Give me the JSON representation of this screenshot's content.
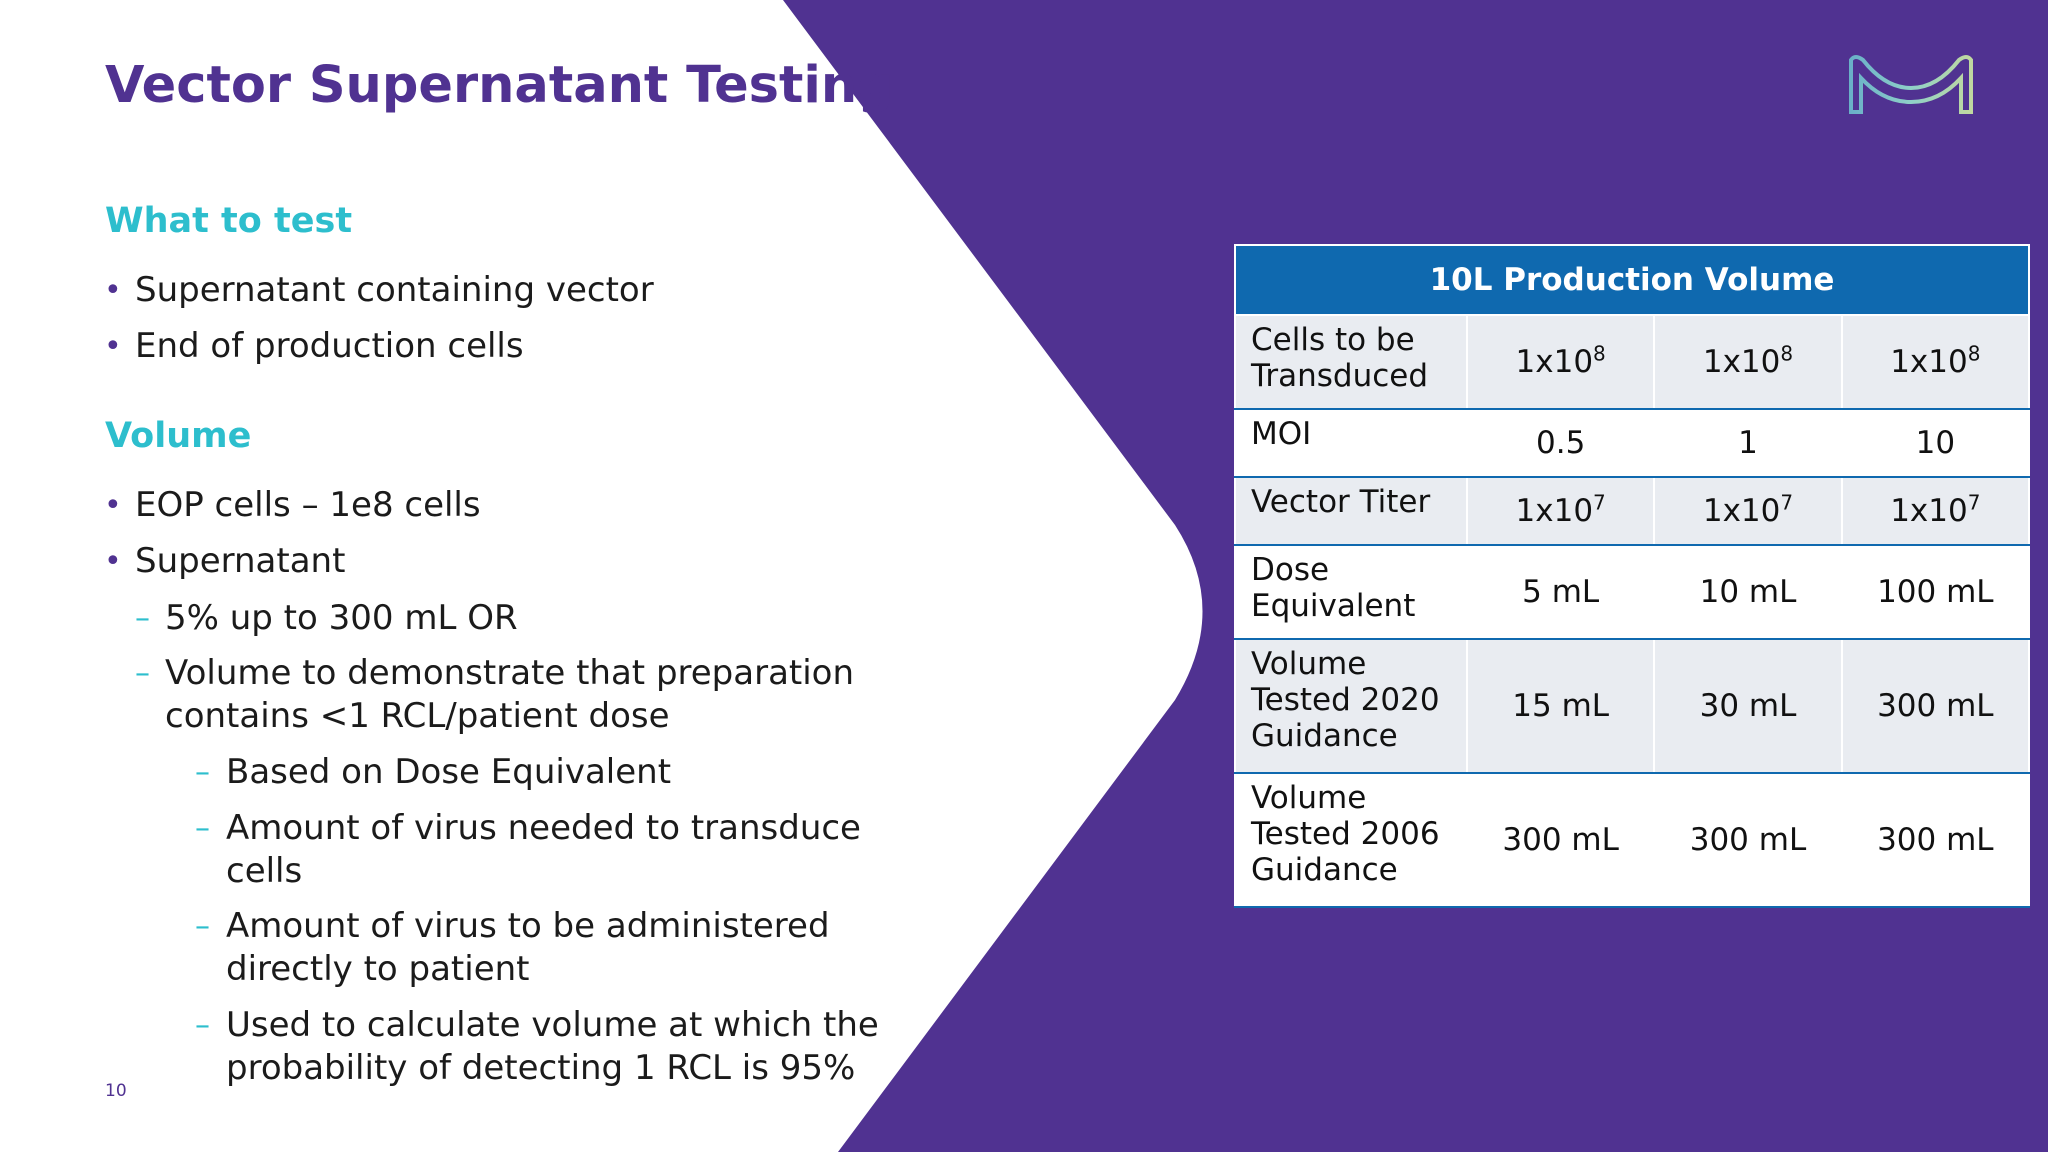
{
  "title": "Vector Supernatant Testing",
  "page_number": "10",
  "sections": [
    {
      "heading": "What to test"
    },
    {
      "heading": "Volume"
    }
  ],
  "what_to_test": [
    "Supernatant containing vector",
    "End of production cells"
  ],
  "volume": {
    "eop": "EOP cells – 1e8 cells",
    "supernatant": "Supernatant",
    "sub1": "5% up to  300 mL  OR",
    "sub2_l1": "Volume to demonstrate that preparation",
    "sub2_l2": "contains <1 RCL/patient dose",
    "sub3_1": "Based on Dose Equivalent",
    "sub3_2_l1": "Amount of virus needed to transduce",
    "sub3_2_l2": "cells",
    "sub3_3_l1": "Amount of virus to be administered",
    "sub3_3_l2": "directly to patient",
    "sub3_4_l1": "Used to calculate volume at which the",
    "sub3_4_l2": "probability of detecting 1 RCL is 95%"
  },
  "table": {
    "header": "10L Production Volume",
    "rows": [
      {
        "label": [
          "Cells to be",
          "Transduced"
        ],
        "values": [
          {
            "base": "1x10",
            "exp": "8"
          },
          {
            "base": "1x10",
            "exp": "8"
          },
          {
            "base": "1x10",
            "exp": "8"
          }
        ]
      },
      {
        "label": [
          "MOI"
        ],
        "values": [
          {
            "base": "0.5",
            "exp": ""
          },
          {
            "base": "1",
            "exp": ""
          },
          {
            "base": "10",
            "exp": ""
          }
        ]
      },
      {
        "label": [
          "Vector Titer"
        ],
        "values": [
          {
            "base": "1x10",
            "exp": "7"
          },
          {
            "base": "1x10",
            "exp": "7"
          },
          {
            "base": "1x10",
            "exp": "7"
          }
        ]
      },
      {
        "label": [
          "Dose",
          "Equivalent"
        ],
        "values": [
          {
            "base": "5 mL",
            "exp": ""
          },
          {
            "base": "10 mL",
            "exp": ""
          },
          {
            "base": "100 mL",
            "exp": ""
          }
        ]
      },
      {
        "label": [
          "Volume",
          "Tested 2020",
          "Guidance"
        ],
        "values": [
          {
            "base": "15 mL",
            "exp": ""
          },
          {
            "base": "30 mL",
            "exp": ""
          },
          {
            "base": "300 mL",
            "exp": ""
          }
        ]
      },
      {
        "label": [
          "Volume",
          "Tested 2006",
          "Guidance"
        ],
        "values": [
          {
            "base": "300 mL",
            "exp": ""
          },
          {
            "base": "300 mL",
            "exp": ""
          },
          {
            "base": "300 mL",
            "exp": ""
          }
        ]
      }
    ]
  },
  "colors": {
    "brand_purple": "#503291",
    "accent_cyan": "#2dbecd",
    "table_header_blue": "#0f69af",
    "row_shade": "#e9ecf1"
  },
  "icons": {
    "logo": "merck-m-logo"
  }
}
